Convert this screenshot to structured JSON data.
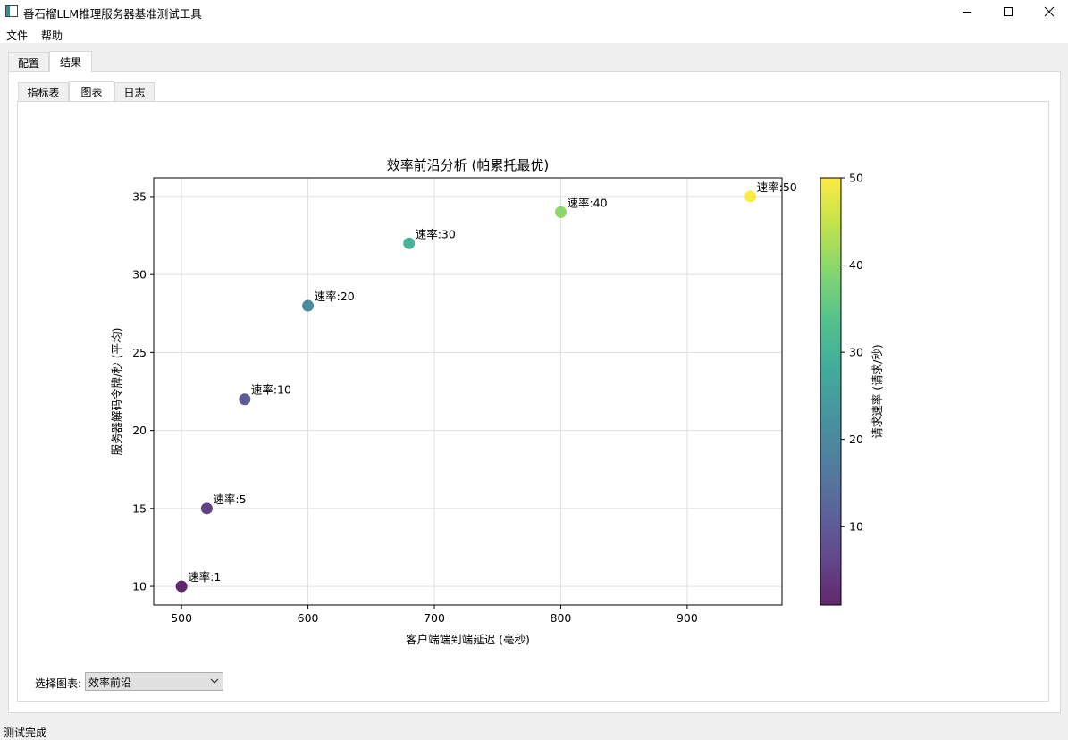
{
  "window": {
    "title": "番石榴LLM推理服务器基准测试工具",
    "icon": "app-window-icon"
  },
  "menu": [
    "文件",
    "帮助"
  ],
  "outer_tabs": [
    "配置",
    "结果"
  ],
  "outer_active": 1,
  "inner_tabs": [
    "指标表",
    "图表",
    "日志"
  ],
  "inner_active": 1,
  "selector": {
    "label": "选择图表:",
    "value": "效率前沿"
  },
  "status": "测试完成",
  "colors": {
    "viridis": [
      "#440154",
      "#482878",
      "#3e4989",
      "#31688e",
      "#26828e",
      "#1f9e89",
      "#35b779",
      "#6ece58",
      "#b5de2b",
      "#fde725"
    ]
  },
  "chart_data": {
    "type": "scatter",
    "title": "效率前沿分析 (帕累托最优)",
    "xlabel": "客户端端到端延迟 (毫秒)",
    "ylabel": "服务器解码令牌/秒 (平均)",
    "colorbar_label": "请求速率 (请求/秒)",
    "xlim": [
      478,
      975
    ],
    "ylim": [
      8.8,
      36.2
    ],
    "xticks": [
      500,
      600,
      700,
      800,
      900
    ],
    "yticks": [
      10,
      15,
      20,
      25,
      30,
      35
    ],
    "colorbar_range": [
      1,
      50
    ],
    "colorbar_ticks": [
      10,
      20,
      30,
      40,
      50
    ],
    "grid": true,
    "points": [
      {
        "x": 500,
        "y": 10,
        "rate": 1,
        "label": "速率:1"
      },
      {
        "x": 520,
        "y": 15,
        "rate": 5,
        "label": "速率:5"
      },
      {
        "x": 550,
        "y": 22,
        "rate": 10,
        "label": "速率:10"
      },
      {
        "x": 600,
        "y": 28,
        "rate": 20,
        "label": "速率:20"
      },
      {
        "x": 680,
        "y": 32,
        "rate": 30,
        "label": "速率:30"
      },
      {
        "x": 800,
        "y": 34,
        "rate": 40,
        "label": "速率:40"
      },
      {
        "x": 950,
        "y": 35,
        "rate": 50,
        "label": "速率:50"
      }
    ]
  }
}
